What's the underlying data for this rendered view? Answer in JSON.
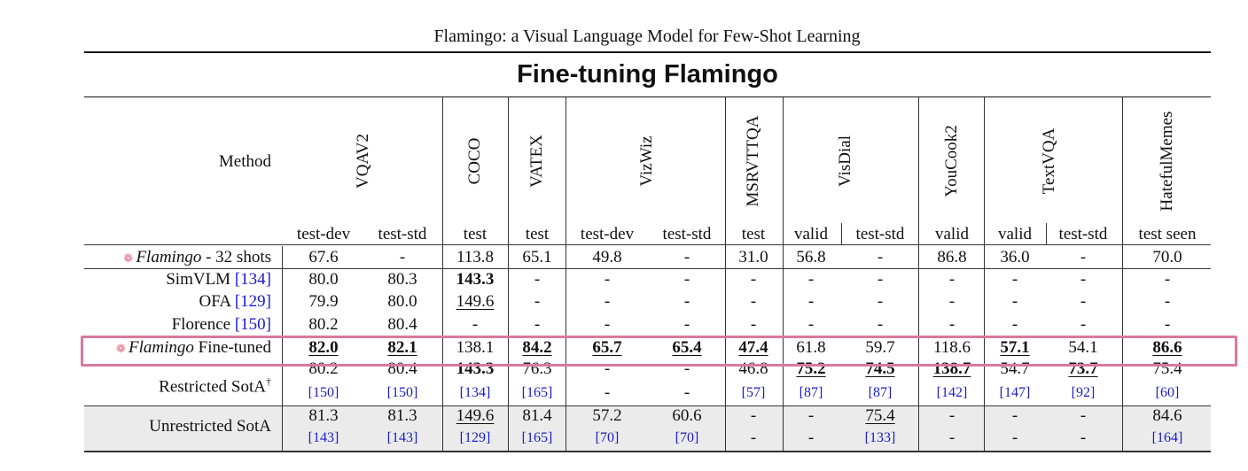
{
  "running_head": "Flamingo: a Visual Language Model for Few-Shot Learning",
  "table_title": "Fine-tuning Flamingo",
  "method_header": "Method",
  "benchmarks": [
    "VQAV2",
    "COCO",
    "VATEX",
    "VizWiz",
    "MSRVTTQA",
    "VisDial",
    "YouCook2",
    "TextVQA",
    "HatefulMemes"
  ],
  "splits": [
    "test-dev",
    "test-std",
    "test",
    "test",
    "test-dev",
    "test-std",
    "test",
    "valid",
    "test-std",
    "valid",
    "valid",
    "test-std",
    "test seen"
  ],
  "rows": {
    "flamingo32": {
      "method_italic": "Flamingo",
      "method_rest": " - 32 shots",
      "values": [
        "67.6",
        "-",
        "113.8",
        "65.1",
        "49.8",
        "-",
        "31.0",
        "56.8",
        "-",
        "86.8",
        "36.0",
        "-",
        "70.0"
      ]
    },
    "simvlm": {
      "method": "SimVLM ",
      "ref": "[134]",
      "values": [
        "80.0",
        "80.3",
        "143.3",
        "-",
        "-",
        "-",
        "-",
        "-",
        "-",
        "-",
        "-",
        "-",
        "-"
      ]
    },
    "ofa": {
      "method": "OFA ",
      "ref": "[129]",
      "values": [
        "79.9",
        "80.0",
        "149.6",
        "-",
        "-",
        "-",
        "-",
        "-",
        "-",
        "-",
        "-",
        "-",
        "-"
      ]
    },
    "florence": {
      "method": "Florence ",
      "ref": "[150]",
      "values": [
        "80.2",
        "80.4",
        "-",
        "-",
        "-",
        "-",
        "-",
        "-",
        "-",
        "-",
        "-",
        "-",
        "-"
      ]
    },
    "finetuned": {
      "method_italic": "Flamingo",
      "method_rest": " Fine-tuned",
      "values": [
        "82.0",
        "82.1",
        "138.1",
        "84.2",
        "65.7",
        "65.4",
        "47.4",
        "61.8",
        "59.7",
        "118.6",
        "57.1",
        "54.1",
        "86.6"
      ]
    },
    "restricted": {
      "method": "Restricted SotA",
      "dagger": "†",
      "values": [
        "80.2",
        "80.4",
        "143.3",
        "76.3",
        "-",
        "-",
        "46.8",
        "75.2",
        "74.5",
        "138.7",
        "54.7",
        "73.7",
        "75.4"
      ],
      "refs": [
        "[150]",
        "[150]",
        "[134]",
        "[165]",
        "-",
        "-",
        "[57]",
        "[87]",
        "[87]",
        "[142]",
        "[147]",
        "[92]",
        "[60]"
      ]
    },
    "unrestricted": {
      "method": "Unrestricted SotA",
      "values": [
        "81.3",
        "81.3",
        "149.6",
        "81.4",
        "57.2",
        "60.6",
        "-",
        "-",
        "75.4",
        "-",
        "-",
        "-",
        "84.6"
      ],
      "refs": [
        "[143]",
        "[143]",
        "[129]",
        "[165]",
        "[70]",
        "[70]",
        "-",
        "-",
        "[133]",
        "-",
        "-",
        "-",
        "[164]"
      ]
    }
  }
}
